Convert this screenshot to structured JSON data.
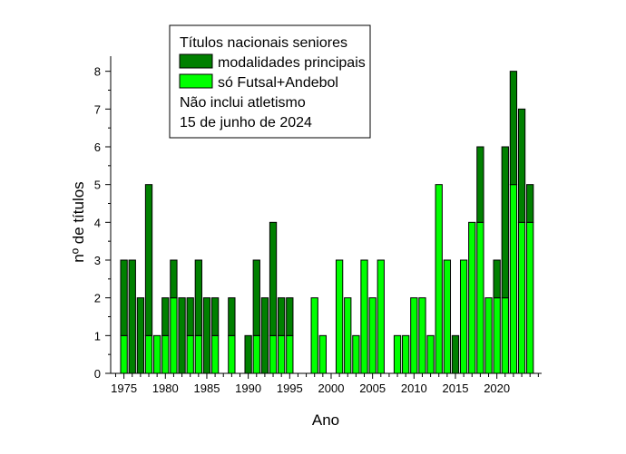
{
  "chart_data": {
    "type": "bar",
    "stacked": true,
    "xlabel": "Ano",
    "ylabel": "nº de títulos",
    "xlim": [
      1973.4,
      2025.4
    ],
    "ylim": [
      0,
      8.4
    ],
    "xticks": [
      1975,
      1980,
      1985,
      1990,
      1995,
      2000,
      2005,
      2010,
      2015,
      2020
    ],
    "yticks": [
      0,
      1,
      2,
      3,
      4,
      5,
      6,
      7,
      8
    ],
    "grid": false,
    "legend": {
      "placement": "top-center",
      "title": "Títulos nacionais seniores",
      "notes": [
        "Não inclui atletismo",
        "15 de junho de 2024"
      ]
    },
    "x": [
      1975,
      1976,
      1977,
      1978,
      1979,
      1980,
      1981,
      1982,
      1983,
      1984,
      1985,
      1986,
      1987,
      1988,
      1989,
      1990,
      1991,
      1992,
      1993,
      1994,
      1995,
      1996,
      1997,
      1998,
      1999,
      2000,
      2001,
      2002,
      2003,
      2004,
      2005,
      2006,
      2007,
      2008,
      2009,
      2010,
      2011,
      2012,
      2013,
      2014,
      2015,
      2016,
      2017,
      2018,
      2019,
      2020,
      2021,
      2022,
      2023,
      2024
    ],
    "series": [
      {
        "name": "só Futsal+Andebol",
        "color": "#00ff00",
        "values": [
          1,
          0,
          0,
          1,
          1,
          1,
          2,
          0,
          1,
          1,
          0,
          1,
          0,
          1,
          0,
          0,
          1,
          0,
          1,
          1,
          1,
          0,
          0,
          2,
          1,
          0,
          3,
          2,
          1,
          3,
          2,
          3,
          0,
          1,
          1,
          2,
          2,
          1,
          5,
          3,
          0,
          3,
          4,
          4,
          2,
          2,
          2,
          5,
          4,
          4
        ]
      },
      {
        "name": "modalidades principais",
        "color": "#008000",
        "values": [
          2,
          3,
          2,
          4,
          0,
          1,
          1,
          2,
          1,
          2,
          2,
          1,
          0,
          1,
          0,
          1,
          2,
          2,
          3,
          1,
          1,
          0,
          0,
          0,
          0,
          0,
          0,
          0,
          0,
          0,
          0,
          0,
          0,
          0,
          0,
          0,
          0,
          0,
          0,
          0,
          1,
          0,
          0,
          2,
          0,
          1,
          4,
          3,
          3,
          1
        ]
      }
    ]
  }
}
